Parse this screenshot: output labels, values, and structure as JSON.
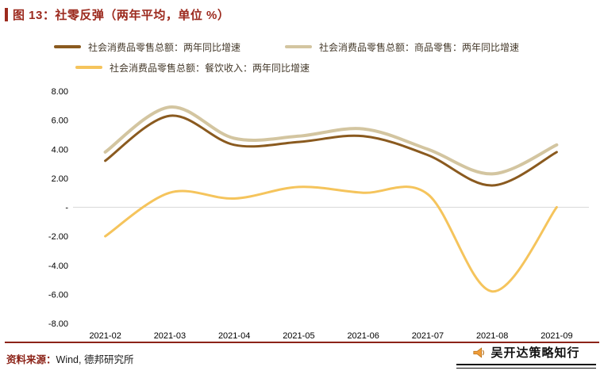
{
  "title": "图 13：社零反弹（两年平均，单位 %）",
  "source": {
    "prefix": "资料来源：",
    "text": "Wind, 德邦研究所"
  },
  "watermark": {
    "icon": "megaphone-icon",
    "text": "吴开达策略知行"
  },
  "colors": {
    "accent_red": "#9c2a1e",
    "separator": "#8c2318",
    "zero_line": "#d9d9d9"
  },
  "chart_data": {
    "type": "line",
    "title": "社零反弹（两年平均，单位 %）",
    "line_style": "smooth",
    "legend_position": "top",
    "grid": "zero-line-only",
    "categories": [
      "2021-02",
      "2021-03",
      "2021-04",
      "2021-05",
      "2021-06",
      "2021-07",
      "2021-08",
      "2021-09"
    ],
    "series": [
      {
        "name": "社会消费品零售总额：两年同比增速",
        "color": "#8a5a1f",
        "values": [
          3.2,
          6.3,
          4.3,
          4.5,
          4.9,
          3.6,
          1.5,
          3.8
        ]
      },
      {
        "name": "社会消费品零售总额：商品零售：两年同比增速",
        "color": "#d3c5a0",
        "values": [
          3.8,
          6.9,
          4.75,
          4.9,
          5.4,
          4.0,
          2.3,
          4.3
        ]
      },
      {
        "name": "社会消费品零售总额：餐饮收入：两年同比增速",
        "color": "#f5c45c",
        "values": [
          -2.0,
          1.0,
          0.6,
          1.4,
          1.0,
          0.9,
          -5.8,
          0.0
        ]
      }
    ],
    "ylim": [
      -8,
      8
    ],
    "yticks": [
      {
        "value": 8,
        "label": "8.00"
      },
      {
        "value": 6,
        "label": "6.00"
      },
      {
        "value": 4,
        "label": "4.00"
      },
      {
        "value": 2,
        "label": "2.00"
      },
      {
        "value": 0,
        "label": "-"
      },
      {
        "value": -2,
        "label": "-2.00"
      },
      {
        "value": -4,
        "label": "-4.00"
      },
      {
        "value": -6,
        "label": "-6.00"
      },
      {
        "value": -8,
        "label": "-8.00"
      }
    ]
  }
}
